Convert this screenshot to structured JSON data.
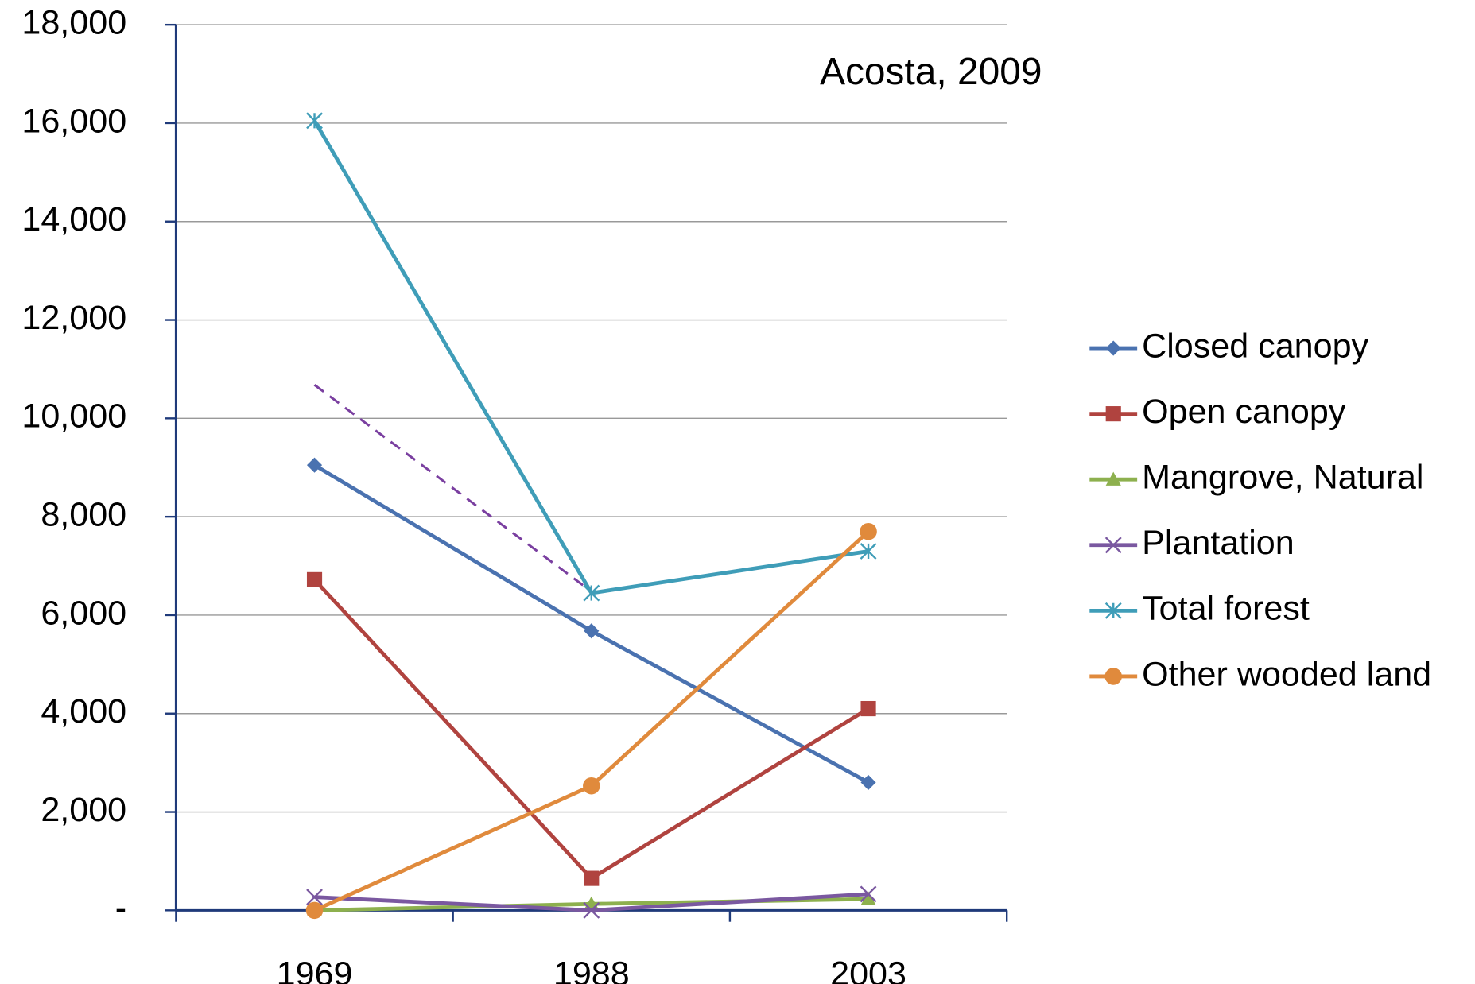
{
  "chart_data": {
    "type": "line",
    "annotation": "Acosta, 2009",
    "categories": [
      "1969",
      "1988",
      "2003"
    ],
    "series": [
      {
        "name": "Closed canopy",
        "color": "#4a72b0",
        "marker": "diamond",
        "values": [
          9050,
          5680,
          2600
        ]
      },
      {
        "name": "Open canopy",
        "color": "#b0433f",
        "marker": "square",
        "values": [
          6720,
          650,
          4100
        ]
      },
      {
        "name": "Mangrove, Natural",
        "color": "#8db04e",
        "marker": "triangle",
        "values": [
          0,
          130,
          230
        ]
      },
      {
        "name": "Plantation",
        "color": "#7a58a0",
        "marker": "x",
        "values": [
          270,
          0,
          330
        ]
      },
      {
        "name": "Total forest",
        "color": "#3f9db8",
        "marker": "star",
        "values": [
          16050,
          6450,
          7300
        ]
      },
      {
        "name": "Other wooded land",
        "color": "#e08a3c",
        "marker": "circle",
        "values": [
          0,
          2530,
          7700
        ]
      }
    ],
    "dashed_line": {
      "color": "#7a3fa0",
      "values": [
        10680,
        6480,
        null
      ]
    },
    "ylim": [
      0,
      18000
    ],
    "yticks": [
      {
        "value": 0,
        "label": "-"
      },
      {
        "value": 2000,
        "label": "2,000"
      },
      {
        "value": 4000,
        "label": "4,000"
      },
      {
        "value": 6000,
        "label": "6,000"
      },
      {
        "value": 8000,
        "label": "8,000"
      },
      {
        "value": 10000,
        "label": "10,000"
      },
      {
        "value": 12000,
        "label": "12,000"
      },
      {
        "value": 14000,
        "label": "14,000"
      },
      {
        "value": 16000,
        "label": "16,000"
      },
      {
        "value": 18000,
        "label": "18,000"
      }
    ],
    "grid": true,
    "legend": "right"
  }
}
